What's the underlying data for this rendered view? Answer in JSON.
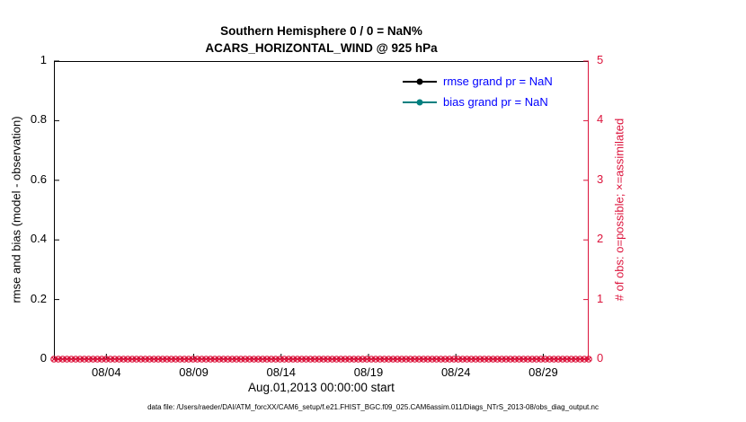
{
  "title": {
    "line1": "Southern Hemisphere 0 / 0 = NaN%",
    "line2": "ACARS_HORIZONTAL_WIND @ 925 hPa"
  },
  "left_axis": {
    "label": "rmse and bias (model - observation)"
  },
  "right_axis": {
    "label": "# of obs: o=possible; ×=assimilated",
    "color": "#DC143C"
  },
  "x_axis": {
    "label": "Aug.01,2013 00:00:00 start"
  },
  "legend": {
    "label_color": "#0000FF",
    "items": [
      {
        "label": "rmse grand pr = NaN",
        "color": "#000000"
      },
      {
        "label": "bias grand pr = NaN",
        "color": "#008080"
      }
    ]
  },
  "footer": "data file: /Users/raeder/DAI/ATM_forcXX/CAM6_setup/f.e21.FHIST_BGC.f09_025.CAM6assim.011/Diags_NTrS_2013-08/obs_diag_output.nc",
  "chart_data": {
    "type": "line",
    "title": "Southern Hemisphere 0 / 0 = NaN%",
    "subtitle": "ACARS_HORIZONTAL_WIND @ 925 hPa",
    "xlabel": "Aug.01,2013 00:00:00 start",
    "ylabel_left": "rmse and bias (model - observation)",
    "ylabel_right": "# of obs: o=possible; ×=assimilated",
    "grid": false,
    "legend_position": "upper right inside",
    "x_ticks": [
      "08/04",
      "08/09",
      "08/14",
      "08/19",
      "08/24",
      "08/29"
    ],
    "x_tick_day_offsets": [
      3,
      8,
      13,
      18,
      23,
      28
    ],
    "x_range_days": [
      0,
      30.6
    ],
    "ylim_left": [
      0,
      1
    ],
    "left_ticks": [
      0,
      0.2,
      0.4,
      0.6,
      0.8,
      1
    ],
    "ylim_right": [
      0,
      5
    ],
    "right_ticks": [
      0,
      1,
      2,
      3,
      4,
      5
    ],
    "right_color": "#DC143C",
    "series": [
      {
        "name": "rmse grand pr = NaN",
        "color": "#000000",
        "values": "all NaN (no line drawn)"
      },
      {
        "name": "bias grand pr = NaN",
        "color": "#008080",
        "values": "all NaN (no line drawn)"
      }
    ],
    "obs_series": {
      "description": "# of obs per time on right axis; possible (o) and assimilated (x) both constant 0",
      "n_points": 124,
      "constant_value": 0,
      "possible_marker": "o",
      "assimilated_marker": "x",
      "color": "#DC143C"
    }
  }
}
